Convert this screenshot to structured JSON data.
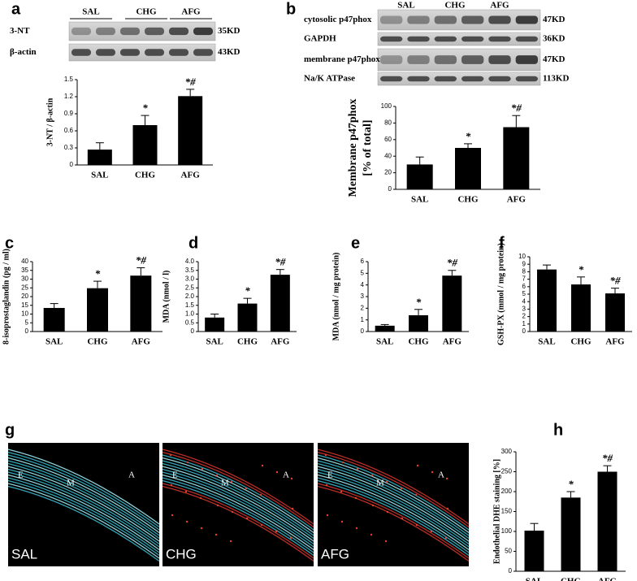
{
  "chart_data": [
    {
      "type": "bar",
      "panel": "a",
      "ylabel": "3-NT / β-actin",
      "categories": [
        "SAL",
        "CHG",
        "AFG"
      ],
      "values": [
        0.27,
        0.7,
        1.21
      ],
      "errors": [
        0.12,
        0.17,
        0.12
      ],
      "annotations": [
        null,
        "*",
        "*#"
      ],
      "color": "#000000",
      "ylim": [
        0,
        1.5
      ],
      "yticks": [
        0,
        0.3,
        0.6,
        0.9,
        1.2,
        1.5
      ]
    },
    {
      "type": "bar",
      "panel": "b",
      "ylabel": [
        "Membrane p47phox",
        "[% of total]"
      ],
      "categories": [
        "SAL",
        "CHG",
        "AFG"
      ],
      "values": [
        30,
        50,
        75
      ],
      "errors": [
        9,
        5,
        14
      ],
      "annotations": [
        null,
        "*",
        "*#"
      ],
      "color": "#000000",
      "ylim": [
        0,
        100
      ],
      "yticks": [
        0,
        20,
        40,
        60,
        80,
        100
      ]
    },
    {
      "type": "bar",
      "panel": "c",
      "ylabel": "8-isoprostaglandin (pg / ml)",
      "categories": [
        "SAL",
        "CHG",
        "AFG"
      ],
      "values": [
        13.5,
        24.8,
        32
      ],
      "errors": [
        2.5,
        4,
        4.5
      ],
      "annotations": [
        null,
        "*",
        "*#"
      ],
      "color": "#000000",
      "ylim": [
        0,
        40
      ],
      "yticks": [
        0,
        5,
        10,
        15,
        20,
        25,
        30,
        35,
        40
      ]
    },
    {
      "type": "bar",
      "panel": "d",
      "ylabel": "MDA (nmol / l)",
      "categories": [
        "SAL",
        "CHG",
        "AFG"
      ],
      "values": [
        0.8,
        1.6,
        3.25
      ],
      "errors": [
        0.2,
        0.3,
        0.3
      ],
      "annotations": [
        null,
        "*",
        "*#"
      ],
      "color": "#000000",
      "ylim": [
        0,
        4
      ],
      "yticks": [
        0,
        0.5,
        {
          "value": 1,
          "label": "1.0"
        },
        1.5,
        {
          "value": 2,
          "label": "2.0"
        },
        2.5,
        {
          "value": 3,
          "label": "3.0"
        },
        3.5,
        {
          "value": 4,
          "label": "4.0"
        }
      ]
    },
    {
      "type": "bar",
      "panel": "e",
      "ylabel": "MDA (nmol / mg protein)",
      "categories": [
        "SAL",
        "CHG",
        "AFG"
      ],
      "values": [
        0.5,
        1.4,
        4.8
      ],
      "errors": [
        0.1,
        0.5,
        0.45
      ],
      "annotations": [
        null,
        "*",
        "*#"
      ],
      "color": "#000000",
      "ylim": [
        0,
        6
      ],
      "yticks": [
        0,
        1,
        2,
        3,
        4,
        5,
        6
      ]
    },
    {
      "type": "bar",
      "panel": "f",
      "ylabel": "GSH-PX (mmol / mg protein)",
      "categories": [
        "SAL",
        "CHG",
        "AFG"
      ],
      "values": [
        8.3,
        6.3,
        5.1
      ],
      "errors": [
        0.6,
        1.0,
        0.7
      ],
      "annotations": [
        null,
        "*",
        "*#"
      ],
      "color": "#000000",
      "ylim": [
        0,
        10
      ],
      "yticks": [
        0,
        1,
        2,
        3,
        4,
        5,
        6,
        7,
        8,
        9,
        10
      ]
    },
    {
      "type": "bar",
      "panel": "h",
      "ylabel": "Endothelial DHE staining [%]",
      "categories": [
        "SAL",
        "CHG",
        "AFG"
      ],
      "values": [
        102,
        185,
        250
      ],
      "errors": [
        18,
        15,
        15
      ],
      "annotations": [
        null,
        "*",
        "*#"
      ],
      "color": "#000000",
      "ylim": [
        0,
        300
      ],
      "yticks": [
        0,
        50,
        100,
        150,
        200,
        250,
        300
      ]
    }
  ],
  "blots": [
    {
      "lanes": [
        "SAL",
        "CHG",
        "AFG"
      ],
      "rows": [
        {
          "label": "3-NT",
          "size": "35KD"
        },
        {
          "label": "β-actin",
          "size": "43KD"
        }
      ]
    },
    {
      "lanes": [
        "SAL",
        "CHG",
        "AFG"
      ],
      "rows": [
        {
          "label": "cytosolic p47phox",
          "size": "47KD"
        },
        {
          "label": "GAPDH",
          "size": "36KD"
        },
        {
          "label": "membrane p47phox",
          "size": "47KD"
        },
        {
          "label": "Na/K ATPase",
          "size": "113KD"
        }
      ]
    }
  ],
  "micrographs": {
    "panel": "g",
    "images": [
      {
        "label": "SAL",
        "regions": [
          "E",
          "M",
          "A"
        ]
      },
      {
        "label": "CHG",
        "regions": [
          "E",
          "M",
          "A"
        ]
      },
      {
        "label": "AFG",
        "regions": [
          "E",
          "M",
          "A"
        ]
      }
    ]
  }
}
